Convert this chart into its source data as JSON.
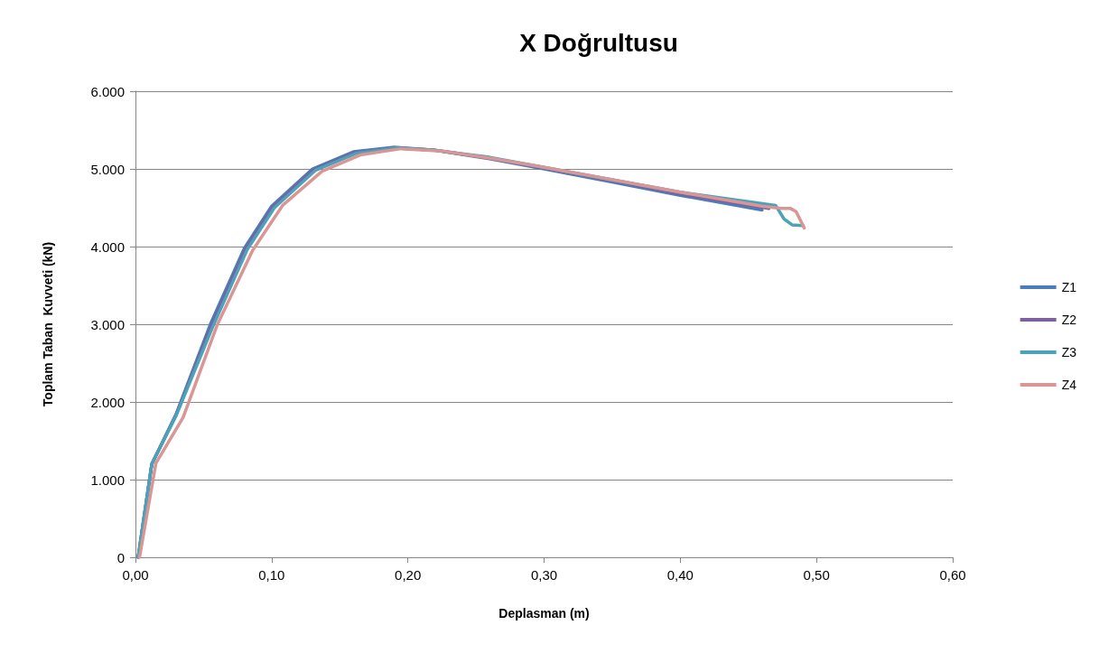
{
  "chart_data": {
    "type": "line",
    "title": "X Doğrultusu",
    "xlabel": "Deplasman (m)",
    "ylabel": "Toplam Taban  Kuvveti (kN)",
    "xlim": [
      0,
      0.6
    ],
    "xticks": [
      {
        "value": 0,
        "label": "0,00"
      },
      {
        "value": 0.1,
        "label": "0,10"
      },
      {
        "value": 0.2,
        "label": "0,20"
      },
      {
        "value": 0.3,
        "label": "0,30"
      },
      {
        "value": 0.4,
        "label": "0,40"
      },
      {
        "value": 0.5,
        "label": "0,50"
      },
      {
        "value": 0.6,
        "label": "0,60"
      }
    ],
    "ylim": [
      0,
      6000
    ],
    "yticks": [
      0,
      {
        "value": 1000,
        "label": "1.000"
      },
      {
        "value": 2000,
        "label": "2.000"
      },
      {
        "value": 3000,
        "label": "3.000"
      },
      {
        "value": 4000,
        "label": "4.000"
      },
      {
        "value": 5000,
        "label": "5.000"
      },
      {
        "value": 6000,
        "label": "6.000"
      }
    ],
    "grid": "y",
    "legend": "right",
    "marker": "none",
    "series": [
      {
        "name": "Z1",
        "color": "#4a7ebb",
        "x": [
          0.002,
          0.012,
          0.03,
          0.055,
          0.08,
          0.1,
          0.13,
          0.16,
          0.19,
          0.22,
          0.26,
          0.3,
          0.35,
          0.4,
          0.46
        ],
        "values": [
          0,
          1200,
          1850,
          3000,
          3980,
          4520,
          5000,
          5220,
          5280,
          5240,
          5130,
          5000,
          4830,
          4660,
          4470
        ]
      },
      {
        "name": "Z2",
        "color": "#7d60a0",
        "x": [
          0.002,
          0.012,
          0.03,
          0.056,
          0.081,
          0.101,
          0.131,
          0.161,
          0.19,
          0.22,
          0.26,
          0.3,
          0.35,
          0.4,
          0.465
        ],
        "values": [
          0,
          1200,
          1840,
          2990,
          3970,
          4510,
          4990,
          5210,
          5270,
          5240,
          5140,
          5010,
          4850,
          4680,
          4490
        ]
      },
      {
        "name": "Z3",
        "color": "#4aa3b8",
        "x": [
          0.002,
          0.012,
          0.03,
          0.057,
          0.082,
          0.102,
          0.132,
          0.162,
          0.192,
          0.22,
          0.26,
          0.3,
          0.35,
          0.4,
          0.47,
          0.476,
          0.482,
          0.49
        ],
        "values": [
          0,
          1200,
          1830,
          2980,
          3960,
          4500,
          4980,
          5200,
          5270,
          5240,
          5150,
          5020,
          4860,
          4700,
          4530,
          4360,
          4280,
          4270
        ]
      },
      {
        "name": "Z4",
        "color": "#d99694",
        "x": [
          0.003,
          0.015,
          0.035,
          0.06,
          0.086,
          0.108,
          0.137,
          0.165,
          0.195,
          0.225,
          0.26,
          0.3,
          0.35,
          0.4,
          0.46,
          0.474,
          0.481,
          0.485,
          0.491
        ],
        "values": [
          0,
          1210,
          1800,
          2990,
          3950,
          4530,
          4970,
          5180,
          5260,
          5230,
          5140,
          5020,
          4860,
          4700,
          4520,
          4490,
          4490,
          4450,
          4240
        ]
      }
    ]
  }
}
